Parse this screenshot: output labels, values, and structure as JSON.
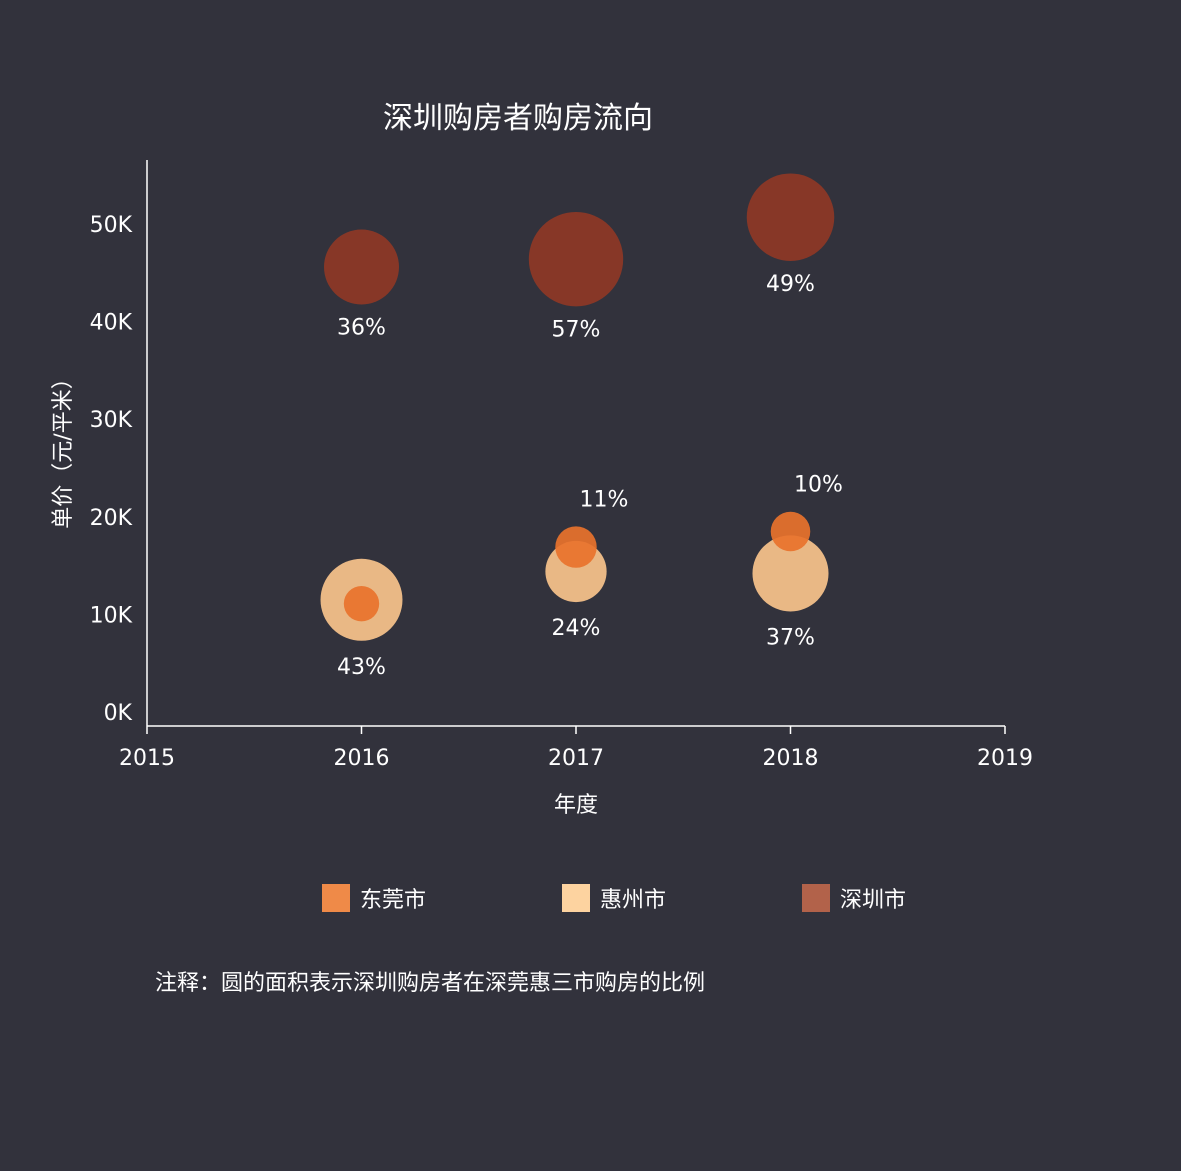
{
  "chart_data": {
    "type": "scatter",
    "title": "深圳购房者购房流向",
    "xlabel": "年度",
    "ylabel": "单价（元/平米）",
    "xlim": [
      2015,
      2019
    ],
    "ylim": [
      0,
      58000
    ],
    "xticks": [
      2015,
      2016,
      2017,
      2018,
      2019
    ],
    "yticks": [
      {
        "value": 0,
        "label": "0K"
      },
      {
        "value": 10000,
        "label": "10K"
      },
      {
        "value": 20000,
        "label": "20K"
      },
      {
        "value": 30000,
        "label": "30K"
      },
      {
        "value": 40000,
        "label": "40K"
      },
      {
        "value": 50000,
        "label": "50K"
      }
    ],
    "series": [
      {
        "name": "惠州市",
        "color": "#fdd3a0",
        "points": [
          {
            "x": 2016,
            "y": 11600,
            "share": 43,
            "label": "43%"
          },
          {
            "x": 2017,
            "y": 14500,
            "share": 24,
            "label": "24%"
          },
          {
            "x": 2018,
            "y": 14300,
            "share": 37,
            "label": "37%"
          }
        ]
      },
      {
        "name": "深圳市",
        "color": "#b2624a",
        "points": [
          {
            "x": 2016,
            "y": 45700,
            "share": 36,
            "label": "36%"
          },
          {
            "x": 2017,
            "y": 46500,
            "share": 57,
            "label": "57%"
          },
          {
            "x": 2018,
            "y": 50800,
            "share": 49,
            "label": "49%"
          }
        ]
      },
      {
        "name": "东莞市",
        "color": "#ef8a48",
        "points": [
          {
            "x": 2016,
            "y": 11200,
            "share": 8,
            "label": ""
          },
          {
            "x": 2017,
            "y": 17000,
            "share": 11,
            "label": "11%"
          },
          {
            "x": 2018,
            "y": 18600,
            "share": 10,
            "label": "10%"
          }
        ]
      }
    ],
    "legend": [
      {
        "name": "东莞市",
        "color": "#ef8a48"
      },
      {
        "name": "惠州市",
        "color": "#fdd3a0"
      },
      {
        "name": "深圳市",
        "color": "#b2624a"
      }
    ],
    "grid": false,
    "legend_position": "bottom"
  },
  "note": "注释：圆的面积表示深圳购房者在深莞惠三市购房的比例",
  "colors": {
    "background": "#32323c",
    "bubble_fill": {
      "东莞市": "#e8722d",
      "惠州市": "#f0bd87",
      "深圳市": "#8a3826"
    }
  }
}
